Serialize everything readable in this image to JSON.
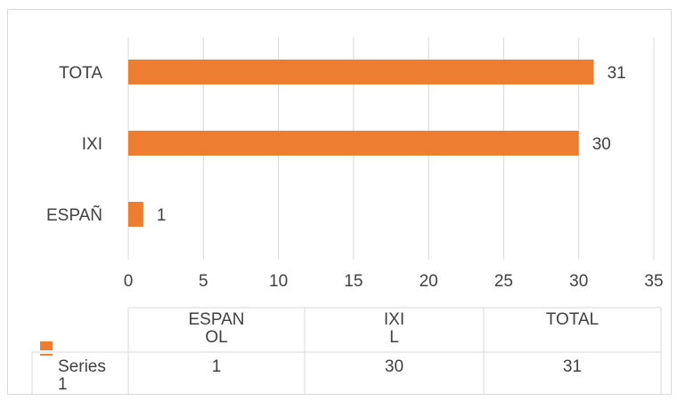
{
  "chart_data": {
    "type": "bar",
    "orientation": "horizontal",
    "categories": [
      "ESPAÑOL",
      "IXIL",
      "TOTAL"
    ],
    "category_axis_labels": [
      "ESPAÑ",
      "IXI",
      "TOTA"
    ],
    "table_headers": [
      "ESPAN\nOL",
      "IXI\nL",
      "TOTAL"
    ],
    "series": [
      {
        "name": "Series 1",
        "name_display": "Series\n1",
        "values": [
          1,
          30,
          31
        ],
        "color": "#ED7D31"
      }
    ],
    "data_labels": [
      "1",
      "30",
      "31"
    ],
    "xlim": [
      0,
      35
    ],
    "xticks": [
      0,
      5,
      10,
      15,
      20,
      25,
      30,
      35
    ],
    "grid": true,
    "data_table": true,
    "legend": "data-table",
    "title": "",
    "xlabel": "",
    "ylabel": ""
  },
  "colors": {
    "gridline": "#d9d9d9",
    "text": "#404040",
    "bar": "#ED7D31",
    "border": "#d9d9d9"
  }
}
